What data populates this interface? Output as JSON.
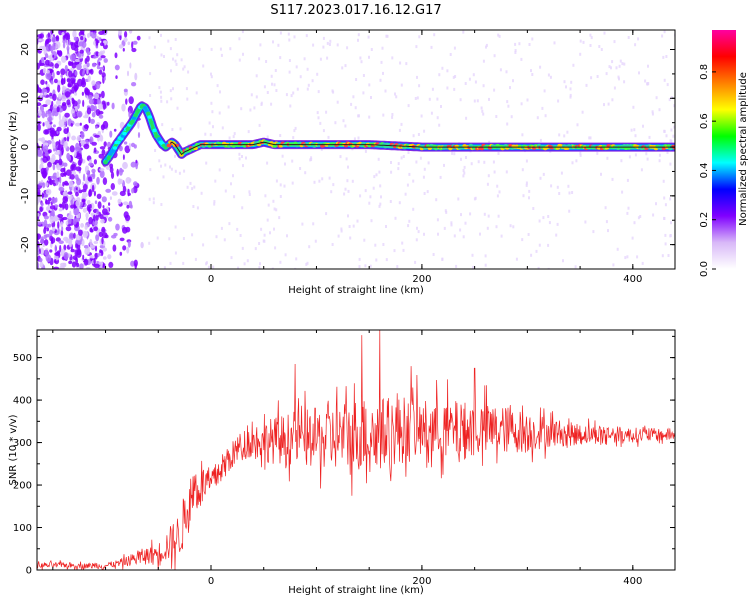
{
  "figure": {
    "title": "S117.2023.017.16.12.G17"
  },
  "chart_data": [
    {
      "type": "heatmap",
      "name": "spectrogram",
      "xlabel": "Height of straight line (km)",
      "ylabel": "Frequency (Hz)",
      "xlim": [
        -165,
        440
      ],
      "ylim": [
        -25,
        24
      ],
      "xticks": [
        0,
        200,
        400
      ],
      "yticks": [
        -20,
        -10,
        0,
        10,
        20
      ],
      "colorbar": {
        "label": "Normalized spectral amplitude",
        "ticks": [
          0.0,
          0.2,
          0.4,
          0.6,
          0.8
        ],
        "range": [
          0,
          0.97
        ],
        "colormap": [
          "#ffffff",
          "#d8b8f8",
          "#8000ff",
          "#0000ff",
          "#00ffff",
          "#00ff00",
          "#ffff00",
          "#ff8000",
          "#ff0000",
          "#ff00a0"
        ]
      },
      "noise_region_x": [
        -165,
        -100
      ],
      "main_track": {
        "x": [
          -100,
          -95,
          -90,
          -85,
          -80,
          -75,
          -70,
          -66,
          -62,
          -58,
          -55,
          -52,
          -49,
          -46,
          -43,
          -40,
          -37,
          -34,
          -31,
          -28,
          -25,
          -20,
          -15,
          -10,
          0,
          20,
          40,
          50,
          60,
          80,
          100,
          150,
          200,
          250,
          300,
          350,
          400,
          440
        ],
        "y": [
          -3,
          -1.5,
          0.5,
          2,
          3.5,
          5,
          7,
          8.5,
          8,
          6,
          4,
          2.5,
          1.5,
          0.5,
          0,
          0.5,
          1,
          0.5,
          -0.5,
          -1.5,
          -1,
          -0.5,
          0,
          0.5,
          0.5,
          0.5,
          0.5,
          1,
          0.5,
          0.5,
          0.5,
          0.5,
          0,
          0,
          0,
          0,
          0,
          0
        ]
      },
      "grid": false
    },
    {
      "type": "line",
      "name": "snr",
      "xlabel": "Height of straight line (km)",
      "ylabel": "SNR (10 * v/v)",
      "xlim": [
        -165,
        440
      ],
      "ylim": [
        0,
        565
      ],
      "xticks": [
        0,
        200,
        400
      ],
      "yticks": [
        0,
        100,
        200,
        300,
        400,
        500
      ],
      "series": [
        {
          "color": "#ee2222",
          "x": [
            -165,
            -140,
            -120,
            -100,
            -90,
            -80,
            -70,
            -60,
            -50,
            -40,
            -30,
            -25,
            -20,
            -15,
            -10,
            -5,
            0,
            10,
            20,
            30,
            40,
            60,
            80,
            100,
            120,
            140,
            160,
            180,
            200,
            220,
            240,
            260,
            280,
            300,
            320,
            340,
            360,
            380,
            400,
            420,
            440
          ],
          "y": [
            10,
            12,
            10,
            10,
            15,
            20,
            30,
            35,
            40,
            60,
            80,
            120,
            160,
            200,
            190,
            210,
            200,
            240,
            270,
            295,
            305,
            305,
            310,
            310,
            315,
            320,
            320,
            330,
            330,
            330,
            330,
            330,
            330,
            325,
            325,
            320,
            320,
            320,
            318,
            318,
            318
          ],
          "noise_amplitude": [
            8,
            8,
            8,
            8,
            10,
            15,
            20,
            25,
            30,
            50,
            70,
            80,
            80,
            70,
            60,
            50,
            45,
            40,
            40,
            45,
            50,
            70,
            80,
            90,
            100,
            110,
            110,
            100,
            90,
            90,
            85,
            80,
            70,
            60,
            45,
            35,
            30,
            25,
            22,
            20,
            18
          ],
          "peaks": [
            {
              "x": 143,
              "y": 553
            },
            {
              "x": 160,
              "y": 565
            },
            {
              "x": 80,
              "y": 485
            },
            {
              "x": 190,
              "y": 480
            },
            {
              "x": 250,
              "y": 475
            }
          ]
        }
      ],
      "grid": false
    }
  ]
}
